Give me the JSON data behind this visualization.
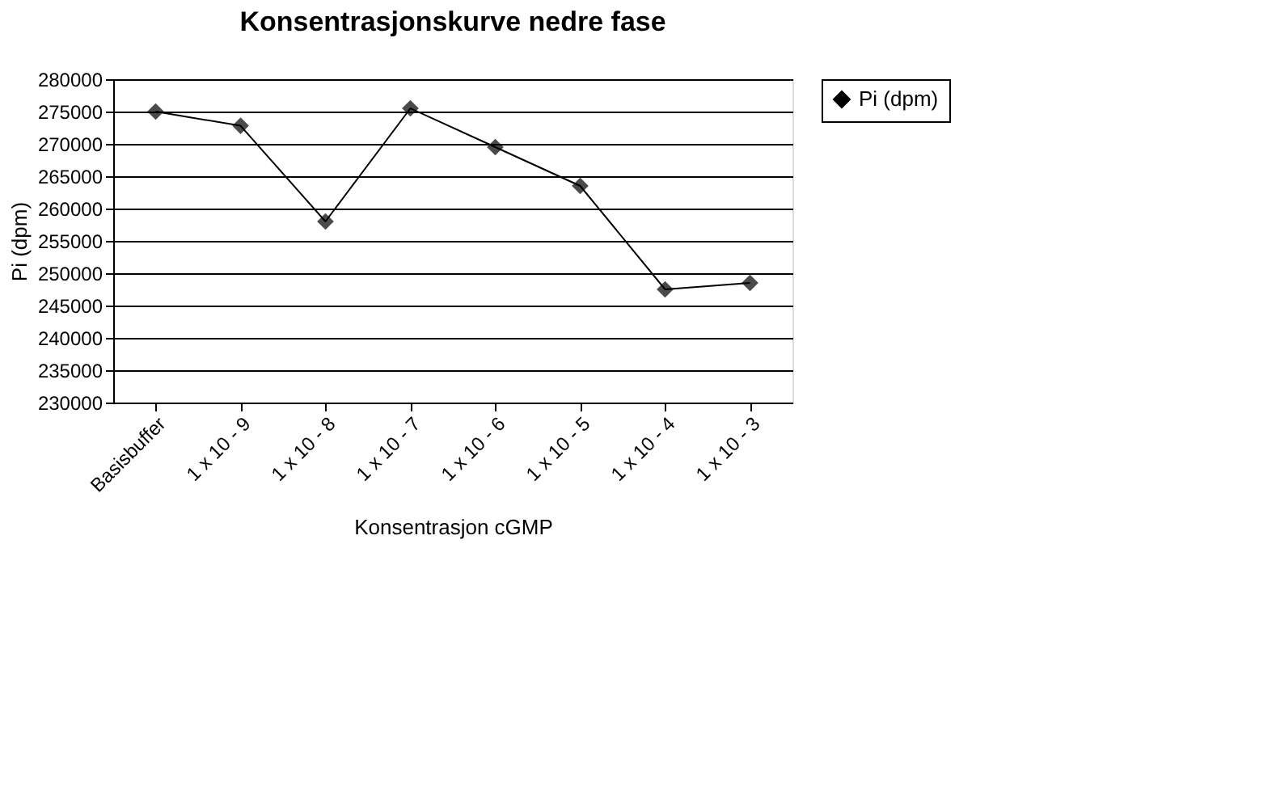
{
  "chart_data": {
    "type": "line",
    "title": "Konsentrasjonskurve nedre fase",
    "xlabel": "Konsentrasjon cGMP",
    "ylabel": "Pi (dpm)",
    "categories": [
      "Basisbuffer",
      "1 x 10 - 9",
      "1 x 10 - 8",
      "1 x 10 - 7",
      "1 x 10 - 6",
      "1 x 10 - 5",
      "1 x 10 - 4",
      "1 x 10 - 3"
    ],
    "series": [
      {
        "name": "Pi (dpm)",
        "color": "#000000",
        "values": [
          275000,
          272800,
          258000,
          275500,
          269500,
          263500,
          247500,
          248500
        ]
      }
    ],
    "ylim": [
      230000,
      280000
    ],
    "yticks": [
      230000,
      235000,
      240000,
      245000,
      250000,
      255000,
      260000,
      265000,
      270000,
      275000,
      280000
    ],
    "grid": "y",
    "legend": "right",
    "marker": "diamond",
    "line_style": "solid"
  }
}
